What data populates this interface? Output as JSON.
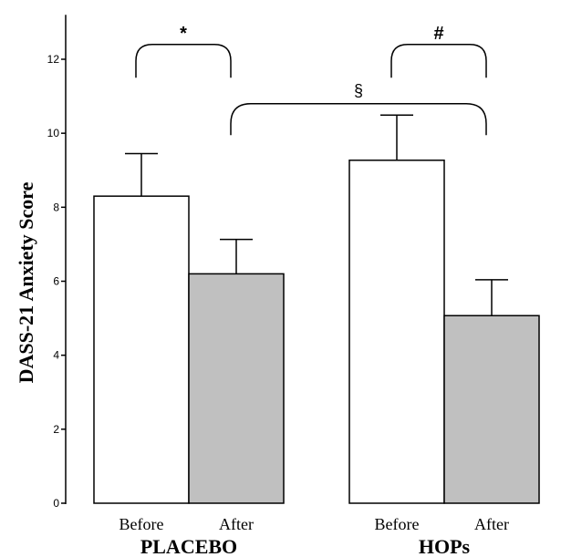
{
  "chart_data": {
    "type": "bar",
    "ylabel": "DASS-21 Anxiety Score",
    "ylim": [
      0,
      13.2
    ],
    "yticks": [
      0,
      2,
      4,
      6,
      8,
      10,
      12
    ],
    "grid": false,
    "groups": [
      {
        "name": "PLACEBO",
        "bars": [
          {
            "category": "Before",
            "value": 8.3,
            "error": 1.15,
            "fill": "#ffffff"
          },
          {
            "category": "After",
            "value": 6.2,
            "error": 0.93,
            "fill": "#c0c0c0"
          }
        ]
      },
      {
        "name": "HOPs",
        "bars": [
          {
            "category": "Before",
            "value": 9.27,
            "error": 1.22,
            "fill": "#ffffff"
          },
          {
            "category": "After",
            "value": 5.07,
            "error": 0.97,
            "fill": "#c0c0c0"
          }
        ]
      }
    ],
    "annotations": [
      {
        "label": "*",
        "from": "PLACEBO Before",
        "to": "PLACEBO After"
      },
      {
        "label": "#",
        "from": "HOPs Before",
        "to": "HOPs After"
      },
      {
        "label": "§",
        "from": "PLACEBO After",
        "to": "HOPs After"
      }
    ]
  }
}
